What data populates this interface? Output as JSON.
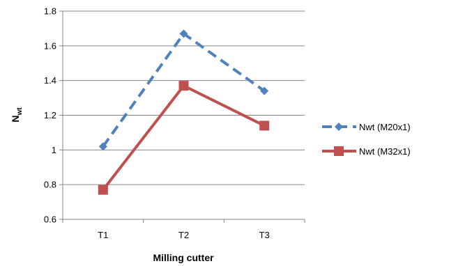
{
  "chart_data": {
    "type": "line",
    "categories": [
      "T1",
      "T2",
      "T3"
    ],
    "series": [
      {
        "name": "Nwt (M20x1)",
        "values": [
          1.02,
          1.67,
          1.34
        ],
        "color": "#4F81BD",
        "marker": "diamond",
        "line_style": "dashed"
      },
      {
        "name": "Nwt (M32x1)",
        "values": [
          0.77,
          1.37,
          1.14
        ],
        "color": "#C0504D",
        "marker": "square",
        "line_style": "solid"
      }
    ],
    "xlabel": "Milling cutter",
    "ylabel_main": "N",
    "ylabel_sub": "wt",
    "ylim": [
      0.6,
      1.8
    ],
    "yticks": [
      "0.6",
      "0.8",
      "1",
      "1.2",
      "1.4",
      "1.6",
      "1.8"
    ],
    "grid": "horizontal",
    "legend_position": "right"
  }
}
